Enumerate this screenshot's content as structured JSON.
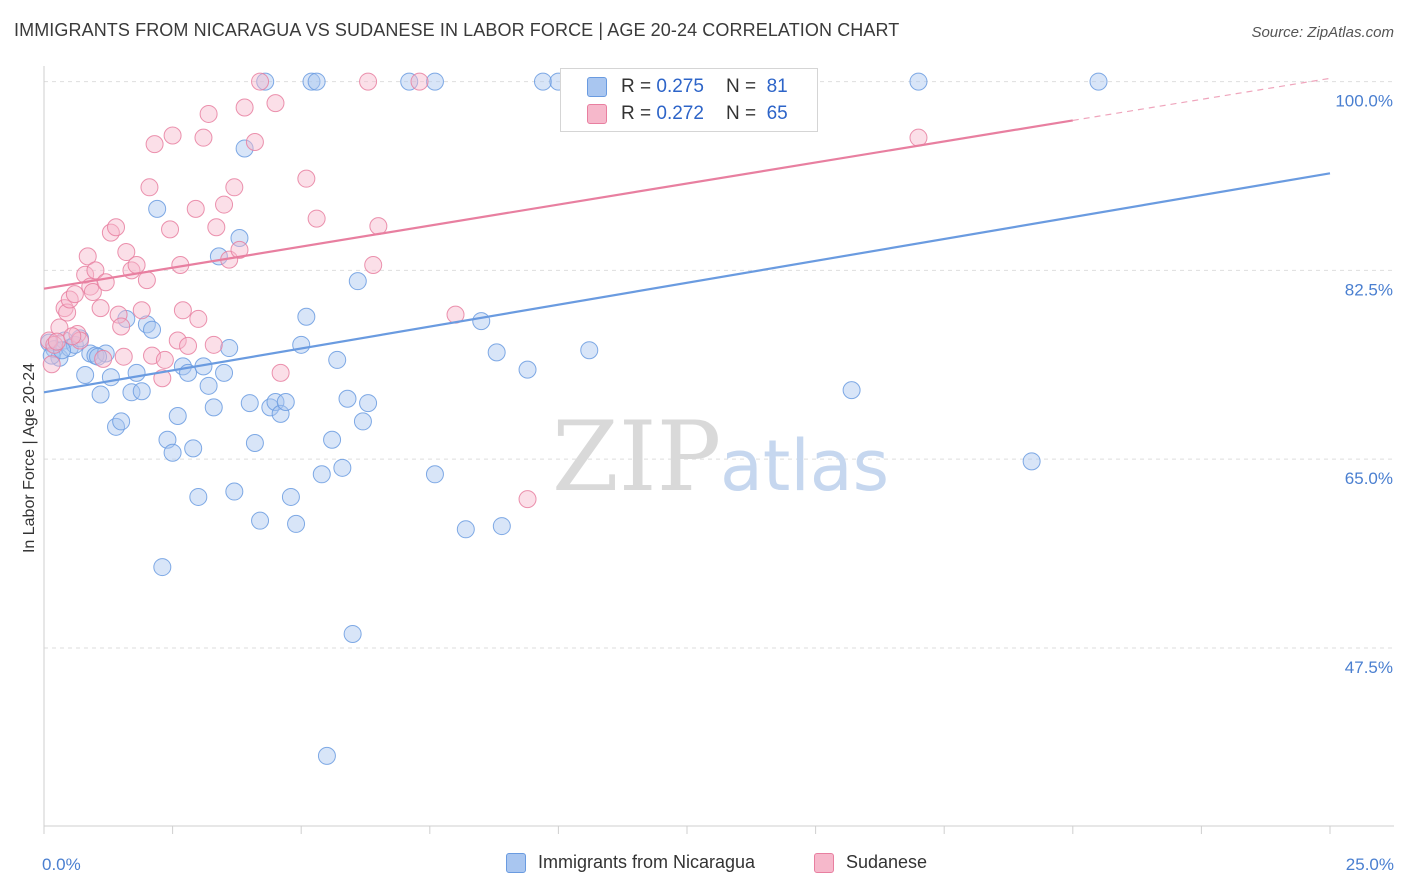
{
  "header": {
    "title": "IMMIGRANTS FROM NICARAGUA VS SUDANESE IN LABOR FORCE | AGE 20-24 CORRELATION CHART",
    "source": "Source: ZipAtlas.com"
  },
  "watermark": {
    "zip": "ZIP",
    "atlas": "atlas"
  },
  "legend": {
    "rows": [
      {
        "r_label": "R =",
        "r_value": "0.275",
        "n_label": "N =",
        "n_value": "81",
        "color": "#a9c6f0"
      },
      {
        "r_label": "R =",
        "r_value": "0.272",
        "n_label": "N =",
        "n_value": "65",
        "color": "#f6b8cb"
      }
    ]
  },
  "chart_data": {
    "type": "scatter",
    "title": "IMMIGRANTS FROM NICARAGUA VS SUDANESE IN LABOR FORCE | AGE 20-24 CORRELATION CHART",
    "xlabel": "",
    "ylabel": "In Labor Force | Age 20-24",
    "xlim": [
      0,
      25
    ],
    "ylim": [
      31,
      102
    ],
    "x_tick_labels": [
      "0.0%",
      "25.0%"
    ],
    "y_ticks": [
      47.5,
      65.0,
      82.5,
      100.0
    ],
    "y_tick_labels": [
      "47.5%",
      "65.0%",
      "82.5%",
      "100.0%"
    ],
    "grid": true,
    "legend_position": "top-center",
    "series": [
      {
        "name": "Immigrants from Nicaragua",
        "color": "#6a9be0",
        "fill": "#a9c6f0",
        "trend": {
          "x": [
            0,
            25
          ],
          "y": [
            71.2,
            91.5
          ]
        },
        "points": [
          [
            0.1,
            75.8
          ],
          [
            0.2,
            75.2
          ],
          [
            0.3,
            74.4
          ],
          [
            0.4,
            76.0
          ],
          [
            0.5,
            75.3
          ],
          [
            0.6,
            75.6
          ],
          [
            0.7,
            76.2
          ],
          [
            0.8,
            72.8
          ],
          [
            0.9,
            74.8
          ],
          [
            1.0,
            74.6
          ],
          [
            1.1,
            71.0
          ],
          [
            1.2,
            74.8
          ],
          [
            1.3,
            72.6
          ],
          [
            1.4,
            68.0
          ],
          [
            1.5,
            68.5
          ],
          [
            1.6,
            78.0
          ],
          [
            1.7,
            71.2
          ],
          [
            1.8,
            73.0
          ],
          [
            1.9,
            71.3
          ],
          [
            2.0,
            77.5
          ],
          [
            2.1,
            77.0
          ],
          [
            2.2,
            88.2
          ],
          [
            2.3,
            55.0
          ],
          [
            2.4,
            66.8
          ],
          [
            2.5,
            65.6
          ],
          [
            2.6,
            69.0
          ],
          [
            2.7,
            73.6
          ],
          [
            2.8,
            73.0
          ],
          [
            2.9,
            66.0
          ],
          [
            3.0,
            61.5
          ],
          [
            3.1,
            73.6
          ],
          [
            3.2,
            71.8
          ],
          [
            3.3,
            69.8
          ],
          [
            3.4,
            83.8
          ],
          [
            3.5,
            73.0
          ],
          [
            3.6,
            75.3
          ],
          [
            3.7,
            62.0
          ],
          [
            3.8,
            85.5
          ],
          [
            3.9,
            93.8
          ],
          [
            4.0,
            70.2
          ],
          [
            4.1,
            66.5
          ],
          [
            4.2,
            59.3
          ],
          [
            4.3,
            100.0
          ],
          [
            4.4,
            69.8
          ],
          [
            4.5,
            70.3
          ],
          [
            4.6,
            69.2
          ],
          [
            4.7,
            70.3
          ],
          [
            4.8,
            61.5
          ],
          [
            4.9,
            59.0
          ],
          [
            5.0,
            75.6
          ],
          [
            5.1,
            78.2
          ],
          [
            5.2,
            100.0
          ],
          [
            5.3,
            100.0
          ],
          [
            5.4,
            63.6
          ],
          [
            5.5,
            37.5
          ],
          [
            5.6,
            66.8
          ],
          [
            5.7,
            74.2
          ],
          [
            5.8,
            64.2
          ],
          [
            5.9,
            70.6
          ],
          [
            6.0,
            48.8
          ],
          [
            6.1,
            81.5
          ],
          [
            6.2,
            68.5
          ],
          [
            6.3,
            70.2
          ],
          [
            7.1,
            100.0
          ],
          [
            7.6,
            100.0
          ],
          [
            7.6,
            63.6
          ],
          [
            8.2,
            58.5
          ],
          [
            8.5,
            77.8
          ],
          [
            8.8,
            74.9
          ],
          [
            8.9,
            58.8
          ],
          [
            9.4,
            73.3
          ],
          [
            9.7,
            100.0
          ],
          [
            10.0,
            100.0
          ],
          [
            10.6,
            75.1
          ],
          [
            15.7,
            71.4
          ],
          [
            17.0,
            100.0
          ],
          [
            19.2,
            64.8
          ],
          [
            20.5,
            100.0
          ],
          [
            0.15,
            74.6
          ],
          [
            0.35,
            75.1
          ],
          [
            1.05,
            74.5
          ]
        ]
      },
      {
        "name": "Sudanese",
        "color": "#e87fa0",
        "fill": "#f6b8cb",
        "trend": {
          "x": [
            0,
            20
          ],
          "y": [
            80.8,
            96.4
          ]
        },
        "trend_dashed": {
          "x": [
            20,
            25
          ],
          "y": [
            96.4,
            100.3
          ]
        },
        "points": [
          [
            0.1,
            76.0
          ],
          [
            0.15,
            73.8
          ],
          [
            0.2,
            75.6
          ],
          [
            0.3,
            77.2
          ],
          [
            0.4,
            79.0
          ],
          [
            0.45,
            78.6
          ],
          [
            0.5,
            79.8
          ],
          [
            0.6,
            80.3
          ],
          [
            0.65,
            76.6
          ],
          [
            0.7,
            76.0
          ],
          [
            0.8,
            82.1
          ],
          [
            0.85,
            83.8
          ],
          [
            0.9,
            81.0
          ],
          [
            0.95,
            80.5
          ],
          [
            1.0,
            82.5
          ],
          [
            1.1,
            79.0
          ],
          [
            1.2,
            81.4
          ],
          [
            1.3,
            86.0
          ],
          [
            1.4,
            86.5
          ],
          [
            1.45,
            78.4
          ],
          [
            1.5,
            77.3
          ],
          [
            1.55,
            74.5
          ],
          [
            1.6,
            84.2
          ],
          [
            1.7,
            82.5
          ],
          [
            1.8,
            83.0
          ],
          [
            1.9,
            78.8
          ],
          [
            2.0,
            81.6
          ],
          [
            2.05,
            90.2
          ],
          [
            2.1,
            74.6
          ],
          [
            2.15,
            94.2
          ],
          [
            2.3,
            72.5
          ],
          [
            2.35,
            74.2
          ],
          [
            2.45,
            86.3
          ],
          [
            2.5,
            95.0
          ],
          [
            2.6,
            76.0
          ],
          [
            2.65,
            83.0
          ],
          [
            2.7,
            78.8
          ],
          [
            2.8,
            75.5
          ],
          [
            2.95,
            88.2
          ],
          [
            3.0,
            78.0
          ],
          [
            3.1,
            94.8
          ],
          [
            3.2,
            97.0
          ],
          [
            3.3,
            75.6
          ],
          [
            3.35,
            86.5
          ],
          [
            3.5,
            88.6
          ],
          [
            3.6,
            83.5
          ],
          [
            3.7,
            90.2
          ],
          [
            3.8,
            84.4
          ],
          [
            3.9,
            97.6
          ],
          [
            4.1,
            94.4
          ],
          [
            4.2,
            100.0
          ],
          [
            4.5,
            98.0
          ],
          [
            4.6,
            73.0
          ],
          [
            5.1,
            91.0
          ],
          [
            5.3,
            87.3
          ],
          [
            6.3,
            100.0
          ],
          [
            6.4,
            83.0
          ],
          [
            6.5,
            86.6
          ],
          [
            7.3,
            100.0
          ],
          [
            8.0,
            78.4
          ],
          [
            9.4,
            61.3
          ],
          [
            17.0,
            94.8
          ],
          [
            0.25,
            75.9
          ],
          [
            0.55,
            76.4
          ],
          [
            1.15,
            74.3
          ]
        ]
      }
    ]
  },
  "bottom_legend": {
    "items": [
      {
        "label": "Immigrants from Nicaragua",
        "color": "#a9c6f0"
      },
      {
        "label": "Sudanese",
        "color": "#f6b8cb"
      }
    ]
  }
}
